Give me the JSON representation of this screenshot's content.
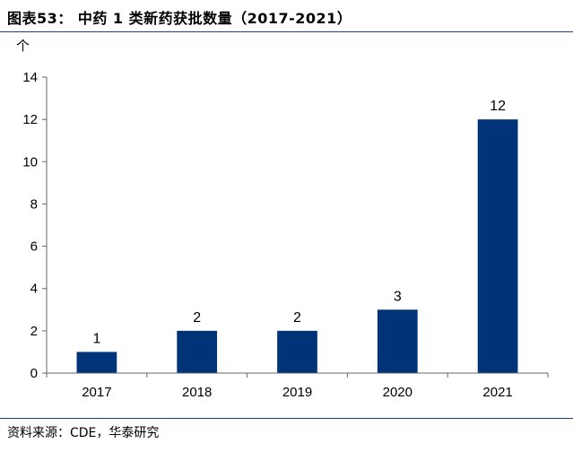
{
  "page": {
    "title": "图表53：  中药 1 类新药获批数量（2017-2021）",
    "source": "资料来源：CDE，华泰研究"
  },
  "colors": {
    "bar": "#003479",
    "rule": "#1d3f7a",
    "axis": "#666666"
  },
  "chart_data": {
    "type": "bar",
    "title": "",
    "xlabel": "",
    "ylabel": "个",
    "categories": [
      "2017",
      "2018",
      "2019",
      "2020",
      "2021"
    ],
    "values": [
      1,
      2,
      2,
      3,
      12
    ],
    "ylim": [
      0,
      14
    ],
    "yticks": [
      0,
      2,
      4,
      6,
      8,
      10,
      12,
      14
    ],
    "data_labels": [
      "1",
      "2",
      "2",
      "3",
      "12"
    ],
    "grid": false,
    "legend": "none"
  }
}
